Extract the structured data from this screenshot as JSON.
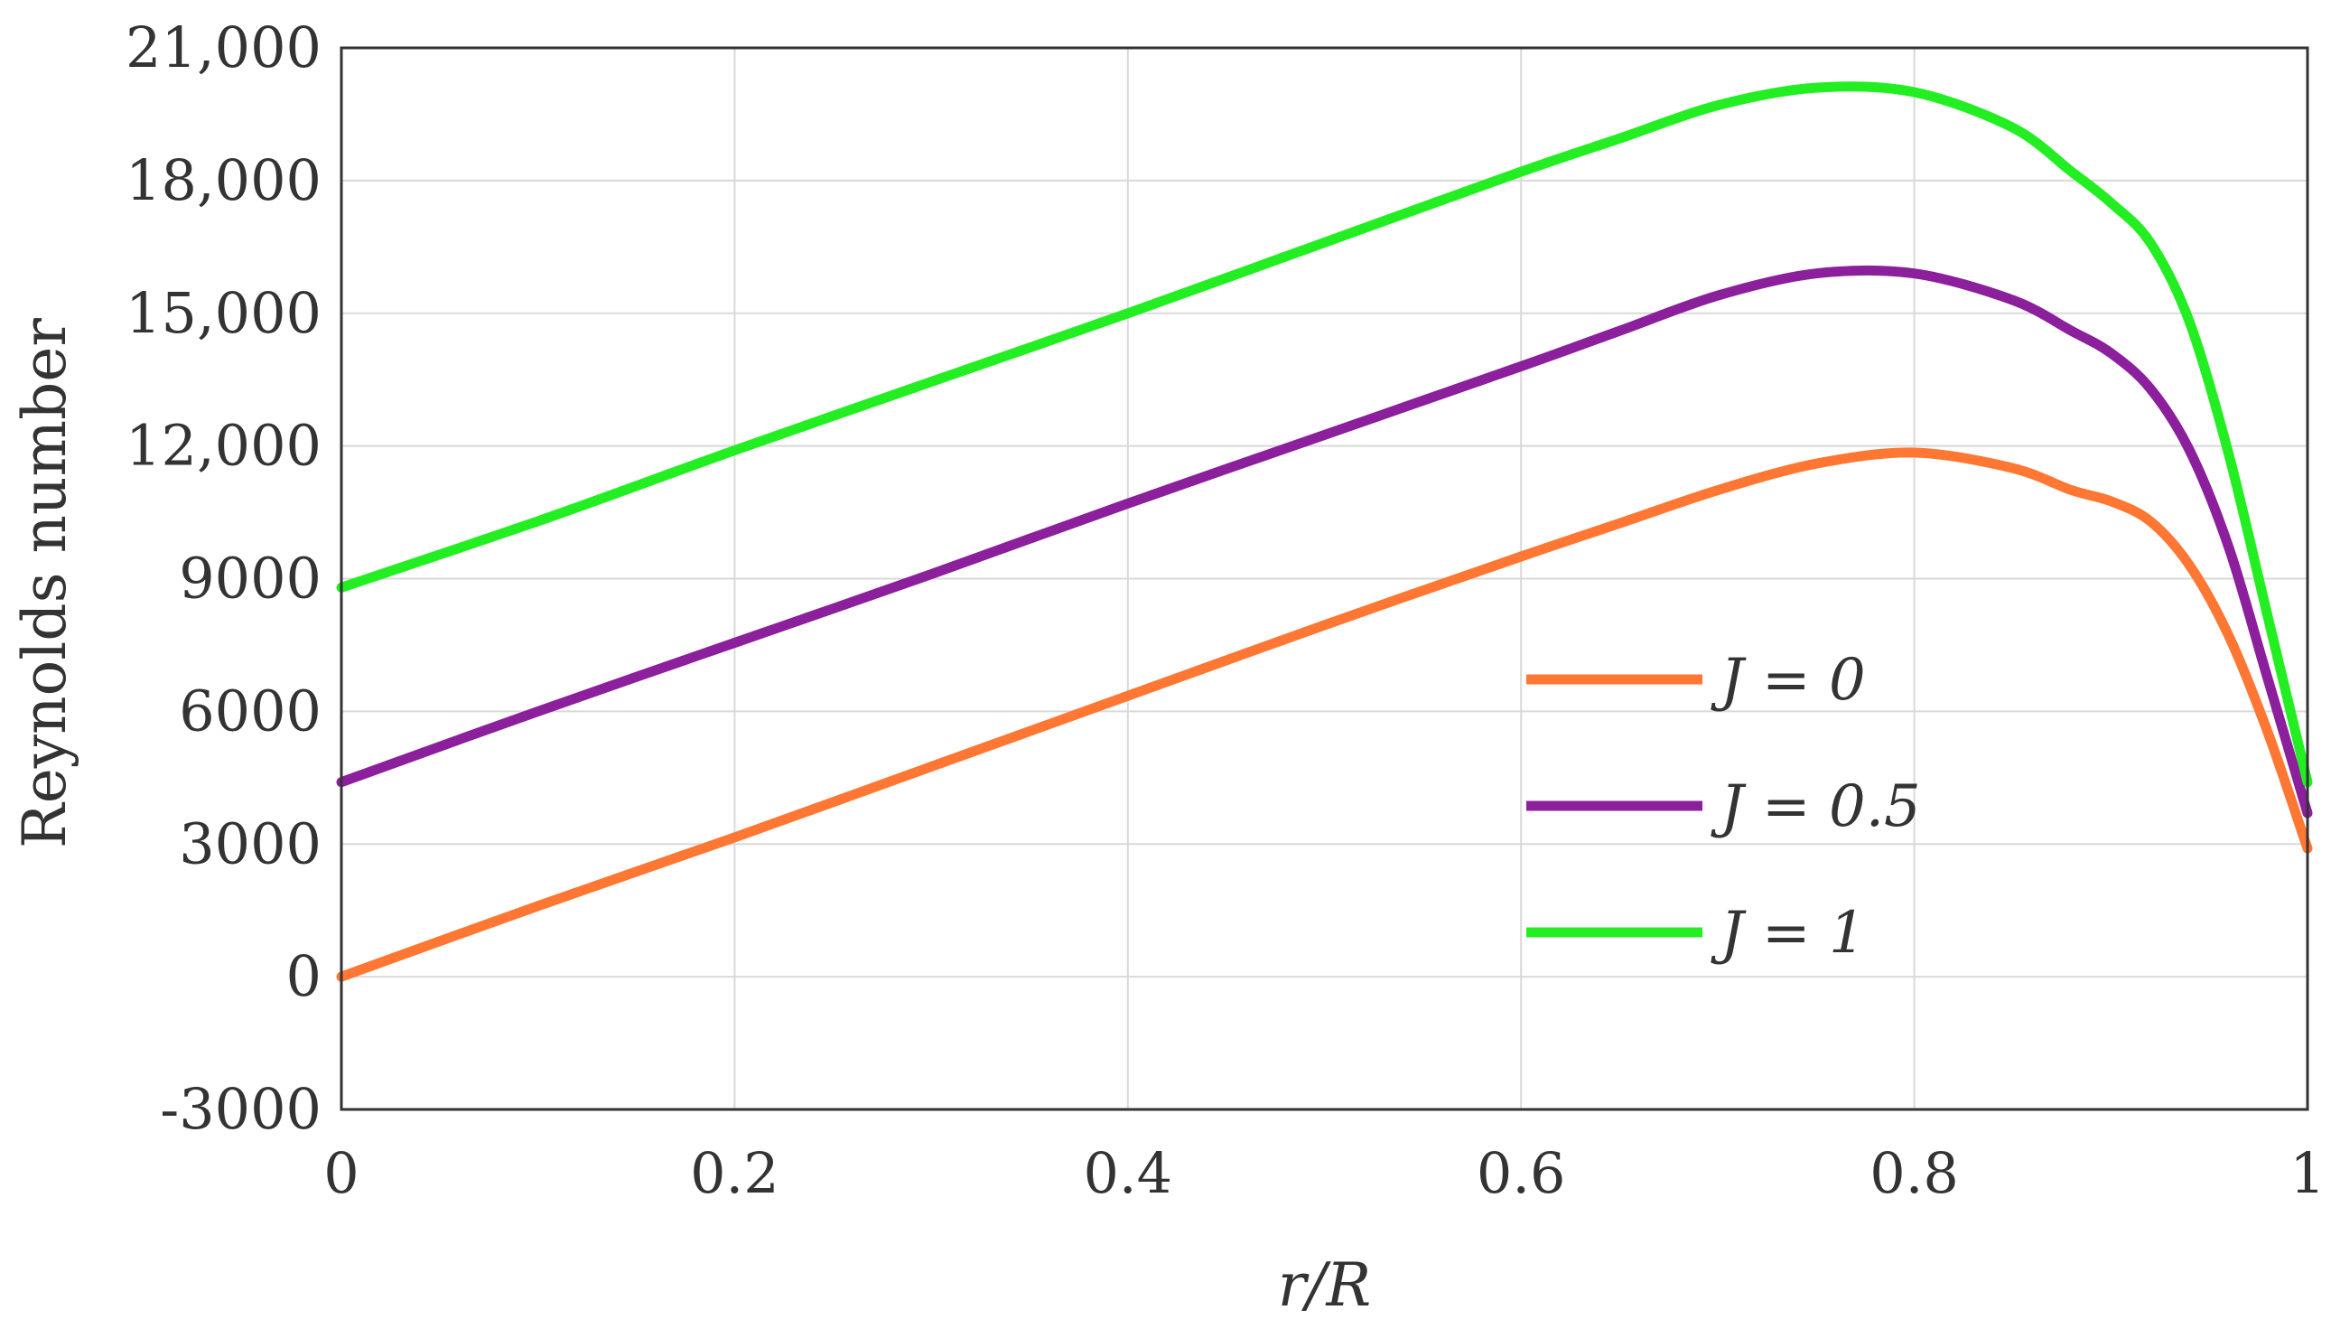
{
  "chart_data": {
    "type": "line",
    "title": "",
    "xlabel": "r/R",
    "ylabel": "Reynolds number",
    "xlim": [
      0,
      1
    ],
    "ylim": [
      -3000,
      21000
    ],
    "x_ticks": [
      0,
      0.2,
      0.4,
      0.6,
      0.8,
      1
    ],
    "x_tick_labels": [
      "0",
      "0.2",
      "0.4",
      "0.6",
      "0.8",
      "1"
    ],
    "y_ticks": [
      -3000,
      0,
      3000,
      6000,
      9000,
      12000,
      15000,
      18000,
      21000
    ],
    "y_tick_labels": [
      "-3000",
      "0",
      "3000",
      "6000",
      "9000",
      "12,000",
      "15,000",
      "18,000",
      "21,000"
    ],
    "grid": true,
    "legend_position": "center-right",
    "series": [
      {
        "name": "J = 0",
        "color": "#ff7733",
        "x": [
          0,
          0.1,
          0.2,
          0.3,
          0.4,
          0.5,
          0.6,
          0.65,
          0.7,
          0.75,
          0.8,
          0.85,
          0.88,
          0.9,
          0.92,
          0.94,
          0.96,
          0.98,
          1.0
        ],
        "y": [
          0,
          1600,
          3150,
          4750,
          6350,
          7950,
          9500,
          10250,
          11000,
          11600,
          11850,
          11500,
          11000,
          10750,
          10300,
          9300,
          7700,
          5500,
          2900
        ]
      },
      {
        "name": "J = 0.5",
        "color": "#8b1f9c",
        "x": [
          0,
          0.1,
          0.2,
          0.3,
          0.4,
          0.5,
          0.6,
          0.65,
          0.7,
          0.75,
          0.8,
          0.85,
          0.88,
          0.9,
          0.92,
          0.94,
          0.96,
          0.98,
          1.0
        ],
        "y": [
          4400,
          6000,
          7550,
          9100,
          10700,
          12250,
          13800,
          14600,
          15400,
          15900,
          15900,
          15300,
          14600,
          14100,
          13300,
          11900,
          9700,
          6700,
          3700
        ]
      },
      {
        "name": "J = 1",
        "color": "#22ee22",
        "x": [
          0,
          0.1,
          0.2,
          0.3,
          0.4,
          0.5,
          0.6,
          0.65,
          0.7,
          0.75,
          0.8,
          0.85,
          0.88,
          0.9,
          0.92,
          0.94,
          0.96,
          0.98,
          1.0
        ],
        "y": [
          8800,
          10300,
          11900,
          13450,
          15000,
          16600,
          18200,
          18950,
          19700,
          20100,
          20000,
          19200,
          18200,
          17500,
          16600,
          14800,
          11800,
          8100,
          4400
        ]
      }
    ]
  }
}
